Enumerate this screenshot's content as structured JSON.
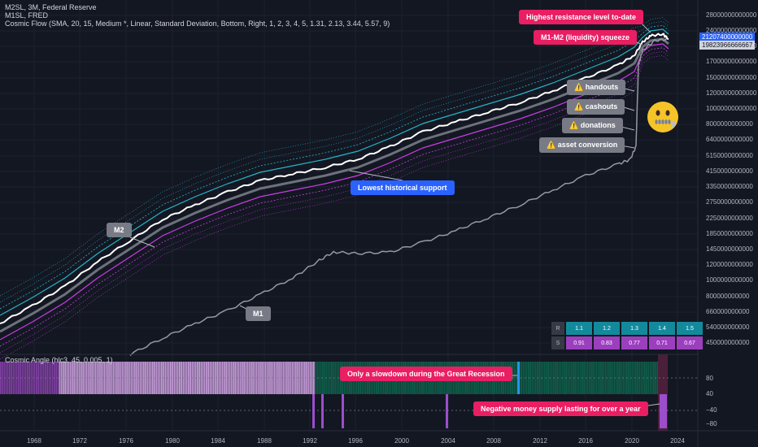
{
  "legend": {
    "line1": "M2SL, 3M, Federal Reserve",
    "line2": "M1SL, FRED",
    "line3": "Cosmic Flow (SMA, 20, 15, Medium *, Linear, Standard Deviation, Bottom, Right, 1, 2, 3, 4, 5, 1.31, 2.13, 3.44, 5.57, 9)"
  },
  "oscillator": {
    "title": "Cosmic Angle (hlc3, 45, 0.005, 1)",
    "axis": [
      "80",
      "40",
      "0",
      "−40",
      "−80"
    ]
  },
  "price_scale": [
    "28000000000000",
    "24000000000000",
    "20000000000000",
    "17000000000000",
    "15000000000000",
    "12000000000000",
    "10000000000000",
    "8000000000000",
    "6400000000000",
    "5150000000000",
    "4150000000000",
    "3350000000000",
    "2750000000000",
    "2250000000000",
    "1850000000000",
    "1450000000000",
    "1200000000000",
    "1000000000000",
    "800000000000",
    "660000000000",
    "540000000000",
    "450000000000",
    "370000000000",
    "306000000000"
  ],
  "price_tags": {
    "m2": "21207400000000",
    "flow": "19823966666667"
  },
  "time_axis": [
    "1968",
    "1972",
    "1976",
    "1980",
    "1984",
    "1988",
    "1992",
    "1996",
    "2000",
    "2004",
    "2008",
    "2012",
    "2016",
    "2020",
    "2024"
  ],
  "annotations": {
    "highest_resistance": "Highest resistance level to-date",
    "squeeze": "M1-M2 (liquidity) squeeze",
    "handouts": "⚠️  handouts",
    "cashouts": "⚠️  cashouts",
    "donations": "⚠️  donations",
    "asset_conversion": "⚠️  asset conversion",
    "lowest_support": "Lowest historical support",
    "m2_label": "M2",
    "m1_label": "M1",
    "great_recession": "Only a slowdown during the Great Recession",
    "negative_supply": "Negative money supply lasting for over a year"
  },
  "stats_table": {
    "headers": [
      "1.1",
      "1.2",
      "1.3",
      "1.4",
      "1.5"
    ],
    "r_label": "R",
    "s_label": "S",
    "s_values": [
      "0.91",
      "0.83",
      "0.77",
      "0.71",
      "0.67"
    ]
  },
  "colors": {
    "background": "#131722",
    "m2_line": "#ffffff",
    "m1_line": "#9598a1",
    "flow_mid": "#787b86",
    "band_teal": "#26c6da",
    "band_pink": "#e040fb",
    "osc_green": "#0f5e4a",
    "osc_purple": "#9c4dcc",
    "callout_red": "#e91e63",
    "callout_blue": "#2962ff",
    "callout_gray": "#787b86"
  },
  "icons": {
    "emoji": "zipper-mouth-face-icon"
  }
}
